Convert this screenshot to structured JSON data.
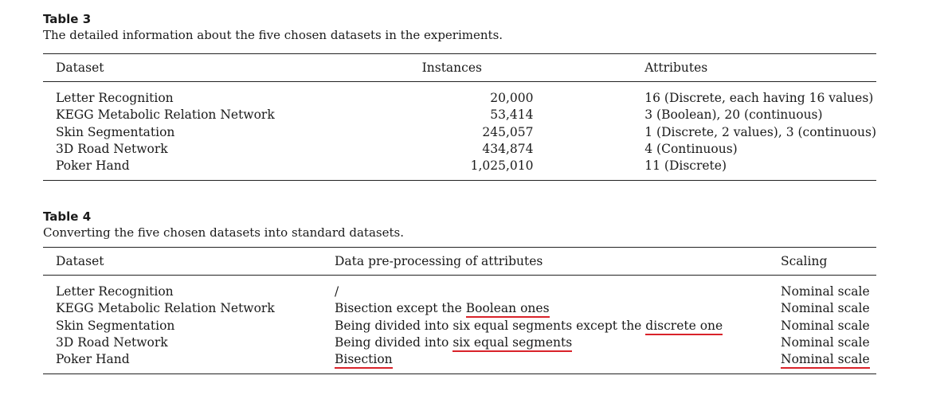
{
  "table3": {
    "label": "Table 3",
    "caption": "The detailed information about the five chosen datasets in the experiments.",
    "headers": [
      "Dataset",
      "Instances",
      "Attributes"
    ],
    "rows": [
      [
        "Letter Recognition",
        "20,000",
        "16 (Discrete, each having 16 values)"
      ],
      [
        "KEGG Metabolic Relation Network",
        "53,414",
        "3 (Boolean), 20 (continuous)"
      ],
      [
        "Skin Segmentation",
        "245,057",
        "1 (Discrete, 2 values), 3 (continuous)"
      ],
      [
        "3D Road Network",
        "434,874",
        "4 (Continuous)"
      ],
      [
        "Poker Hand",
        "1,025,010",
        "11 (Discrete)"
      ]
    ]
  },
  "table4": {
    "label": "Table 4",
    "caption": "Converting the five chosen datasets into standard datasets.",
    "headers": [
      "Dataset",
      "Data pre-processing of attributes",
      "Scaling"
    ],
    "rows": [
      {
        "dataset": "Letter Recognition",
        "pre": "/",
        "pre_ul": "",
        "scaling": "Nominal scale"
      },
      {
        "dataset": "KEGG Metabolic Relation Network",
        "pre": "Bisection except the ",
        "pre_ul": "Boolean ones",
        "scaling": "Nominal scale"
      },
      {
        "dataset": "Skin Segmentation",
        "pre": "Being divided into six equal segments except the ",
        "pre_ul": "discrete one",
        "scaling": "Nominal scale"
      },
      {
        "dataset": "3D Road Network",
        "pre": "Being divided into ",
        "pre_ul": "six equal segments",
        "scaling": "Nominal scale"
      },
      {
        "dataset": "Poker Hand",
        "pre": "",
        "pre_ul": "Bisection",
        "scaling": "Nominal scale"
      }
    ]
  }
}
